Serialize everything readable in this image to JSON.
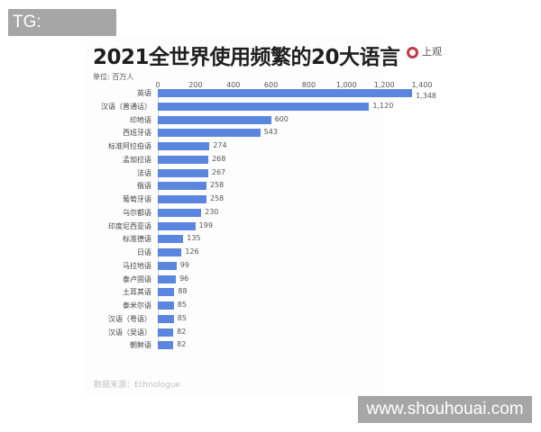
{
  "overlays": {
    "top_watermark": "TG: MYYJJPP",
    "bottom_watermark": "www.shouhouai.com"
  },
  "logo": {
    "icon": "ring-logo-icon",
    "text": "上观",
    "color": "#c0394b"
  },
  "chart_data": {
    "type": "bar",
    "orientation": "horizontal",
    "title": "2021全世界使用频繁的20大语言",
    "unit_label": "单位: 百万人",
    "xlabel": "",
    "ylabel": "",
    "xlim": [
      0,
      1400
    ],
    "ticks": [
      "0",
      "200",
      "400",
      "600",
      "800",
      "1,000",
      "1,200",
      "1,400"
    ],
    "tick_values": [
      0,
      200,
      400,
      600,
      800,
      1000,
      1200,
      1400
    ],
    "axis_position": "top",
    "grid": false,
    "bar_color": "#5b86e0",
    "categories": [
      "英语",
      "汉语（普通话）",
      "印地语",
      "西班牙语",
      "标准阿拉伯语",
      "孟加拉语",
      "法语",
      "俄语",
      "葡萄牙语",
      "乌尔都语",
      "印度尼西亚语",
      "标准德语",
      "日语",
      "马拉地语",
      "泰卢固语",
      "土耳其语",
      "泰米尔语",
      "汉语（粤语）",
      "汉语（吴语）",
      "朝鲜语"
    ],
    "values": [
      1348,
      1120,
      600,
      543,
      274,
      268,
      267,
      258,
      258,
      230,
      199,
      135,
      126,
      99,
      96,
      88,
      85,
      85,
      82,
      82
    ],
    "value_labels": [
      "1,348",
      "1,120",
      "600",
      "543",
      "274",
      "268",
      "267",
      "258",
      "258",
      "230",
      "199",
      "135",
      "126",
      "99",
      "96",
      "88",
      "85",
      "85",
      "82",
      "82"
    ],
    "source": "数据来源：Ethnologue"
  }
}
